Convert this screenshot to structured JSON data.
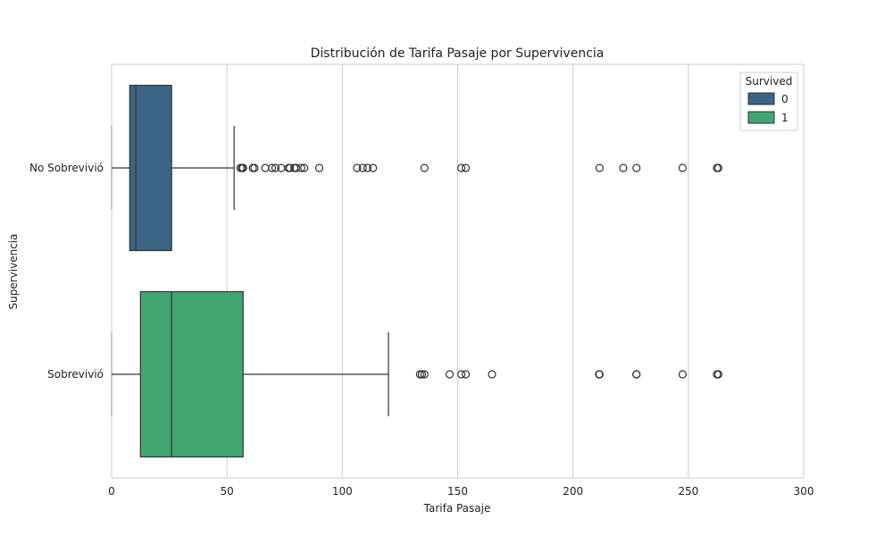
{
  "chart_data": {
    "type": "boxplot",
    "title": "Distribución de Tarifa Pasaje por Supervivencia",
    "xlabel": "Tarifa Pasaje",
    "ylabel": "Supervivencia",
    "xlim": [
      0,
      300
    ],
    "xticks": [
      "0",
      "50",
      "100",
      "150",
      "200",
      "250",
      "300"
    ],
    "grid": true,
    "legend": {
      "title": "Survived",
      "placement": "top-right",
      "entries": [
        {
          "label": "0",
          "color": "#3b6485"
        },
        {
          "label": "1",
          "color": "#41a672"
        }
      ]
    },
    "categories": [
      "No Sobrevivió",
      "Sobrevivió"
    ],
    "series": [
      {
        "name": "0",
        "category": "No Sobrevivió",
        "color": "#3b6485",
        "stats": {
          "min": 0,
          "q1": 7.85,
          "median": 10.5,
          "q3": 26,
          "whisker_high": 53.1
        },
        "outliers": [
          55.9,
          56.5,
          57.0,
          61.2,
          61.9,
          66.6,
          69.5,
          71.0,
          73.5,
          76.7,
          77.3,
          79.2,
          80.0,
          82.2,
          83.5,
          90.0,
          106.4,
          108.9,
          110.9,
          113.3,
          135.6,
          151.6,
          153.5,
          211.5,
          221.8,
          227.5,
          247.5,
          262.4,
          263.0
        ]
      },
      {
        "name": "1",
        "category": "Sobrevivió",
        "color": "#41a672",
        "stats": {
          "min": 0,
          "q1": 12.5,
          "median": 26,
          "q3": 57,
          "whisker_high": 120
        },
        "outliers": [
          133.7,
          134.5,
          135.6,
          146.5,
          151.6,
          153.5,
          164.9,
          211.3,
          211.5,
          227.5,
          227.5,
          247.5,
          262.4,
          263.0
        ]
      }
    ]
  }
}
